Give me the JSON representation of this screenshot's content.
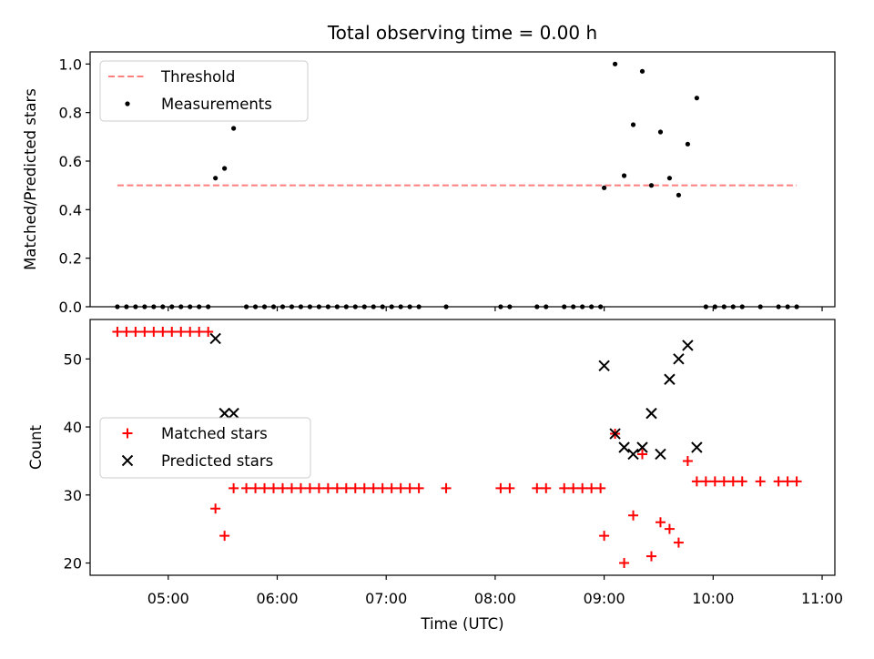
{
  "chart_data": {
    "title": "Total observing time = 0.00 h",
    "xlabel": "Time (UTC)",
    "x_tick_labels": [
      "05:00",
      "06:00",
      "07:00",
      "08:00",
      "09:00",
      "10:00",
      "11:00"
    ],
    "xlim": [
      "04:17",
      "11:07"
    ],
    "panels": [
      {
        "type": "scatter",
        "ylabel": "Matched/Predicted stars",
        "ylim": [
          0.0,
          1.05
        ],
        "y_ticks": [
          0.0,
          0.2,
          0.4,
          0.6,
          0.8,
          1.0
        ],
        "y_tick_labels": [
          "0.0",
          "0.2",
          "0.4",
          "0.6",
          "0.8",
          "1.0"
        ],
        "legend_position": "upper-left",
        "threshold": {
          "name": "Threshold",
          "value": 0.5,
          "x_start": "04:32",
          "x_end": "10:46",
          "color": "#ff7f7f",
          "style": "dashed"
        },
        "series": [
          {
            "name": "Measurements",
            "marker": "dot",
            "color": "#000000",
            "x": [
              "04:32",
              "04:37",
              "04:42",
              "04:47",
              "04:52",
              "04:57",
              "05:02",
              "05:07",
              "05:12",
              "05:17",
              "05:22",
              "05:26",
              "05:31",
              "05:36",
              "05:43",
              "05:48",
              "05:53",
              "05:58",
              "06:03",
              "06:08",
              "06:13",
              "06:18",
              "06:23",
              "06:28",
              "06:33",
              "06:38",
              "06:43",
              "06:48",
              "06:53",
              "06:58",
              "07:03",
              "07:08",
              "07:13",
              "07:18",
              "07:33",
              "08:03",
              "08:08",
              "08:23",
              "08:28",
              "08:38",
              "08:43",
              "08:48",
              "08:53",
              "08:58",
              "09:00",
              "09:06",
              "09:11",
              "09:16",
              "09:21",
              "09:26",
              "09:31",
              "09:36",
              "09:41",
              "09:46",
              "09:51",
              "09:56",
              "10:01",
              "10:06",
              "10:11",
              "10:16",
              "10:26",
              "10:36",
              "10:41",
              "10:46"
            ],
            "y": [
              0,
              0,
              0,
              0,
              0,
              0,
              0,
              0,
              0,
              0,
              0,
              0.53,
              0.57,
              0.735,
              0,
              0,
              0,
              0,
              0,
              0,
              0,
              0,
              0,
              0,
              0,
              0,
              0,
              0,
              0,
              0,
              0,
              0,
              0,
              0,
              0,
              0,
              0,
              0,
              0,
              0,
              0,
              0,
              0,
              0,
              0.49,
              1.0,
              0.54,
              0.75,
              0.97,
              0.5,
              0.72,
              0.53,
              0.46,
              0.67,
              0.86,
              0,
              0,
              0,
              0,
              0,
              0,
              0,
              0,
              0
            ]
          }
        ]
      },
      {
        "type": "scatter",
        "ylabel": "Count",
        "ylim": [
          18.2,
          55.8
        ],
        "y_ticks": [
          20,
          30,
          40,
          50
        ],
        "y_tick_labels": [
          "20",
          "30",
          "40",
          "50"
        ],
        "legend_position": "center-left",
        "series": [
          {
            "name": "Matched stars",
            "marker": "plus",
            "color": "#ff0000",
            "x": [
              "04:32",
              "04:37",
              "04:42",
              "04:47",
              "04:52",
              "04:57",
              "05:02",
              "05:07",
              "05:12",
              "05:17",
              "05:22",
              "05:26",
              "05:31",
              "05:36",
              "05:43",
              "05:48",
              "05:53",
              "05:58",
              "06:03",
              "06:08",
              "06:13",
              "06:18",
              "06:23",
              "06:28",
              "06:33",
              "06:38",
              "06:43",
              "06:48",
              "06:53",
              "06:58",
              "07:03",
              "07:08",
              "07:13",
              "07:18",
              "07:33",
              "08:03",
              "08:08",
              "08:23",
              "08:28",
              "08:38",
              "08:43",
              "08:48",
              "08:53",
              "08:58",
              "09:00",
              "09:06",
              "09:11",
              "09:16",
              "09:21",
              "09:26",
              "09:31",
              "09:36",
              "09:41",
              "09:46",
              "09:51",
              "09:56",
              "10:01",
              "10:06",
              "10:11",
              "10:16",
              "10:26",
              "10:36",
              "10:41",
              "10:46"
            ],
            "y": [
              54,
              54,
              54,
              54,
              54,
              54,
              54,
              54,
              54,
              54,
              54,
              28,
              24,
              31,
              31,
              31,
              31,
              31,
              31,
              31,
              31,
              31,
              31,
              31,
              31,
              31,
              31,
              31,
              31,
              31,
              31,
              31,
              31,
              31,
              31,
              31,
              31,
              31,
              31,
              31,
              31,
              31,
              31,
              31,
              24,
              39,
              20,
              27,
              36,
              21,
              26,
              25,
              23,
              35,
              32,
              32,
              32,
              32,
              32,
              32,
              32,
              32,
              32,
              32
            ]
          },
          {
            "name": "Predicted stars",
            "marker": "x",
            "color": "#000000",
            "x": [
              "05:26",
              "05:31",
              "05:36",
              "09:00",
              "09:06",
              "09:11",
              "09:16",
              "09:21",
              "09:26",
              "09:31",
              "09:36",
              "09:41",
              "09:46",
              "09:51"
            ],
            "y": [
              53,
              42,
              42,
              49,
              39,
              37,
              36,
              37,
              42,
              36,
              47,
              50,
              52,
              37
            ]
          }
        ]
      }
    ],
    "shared_x_tick_marks": true
  }
}
